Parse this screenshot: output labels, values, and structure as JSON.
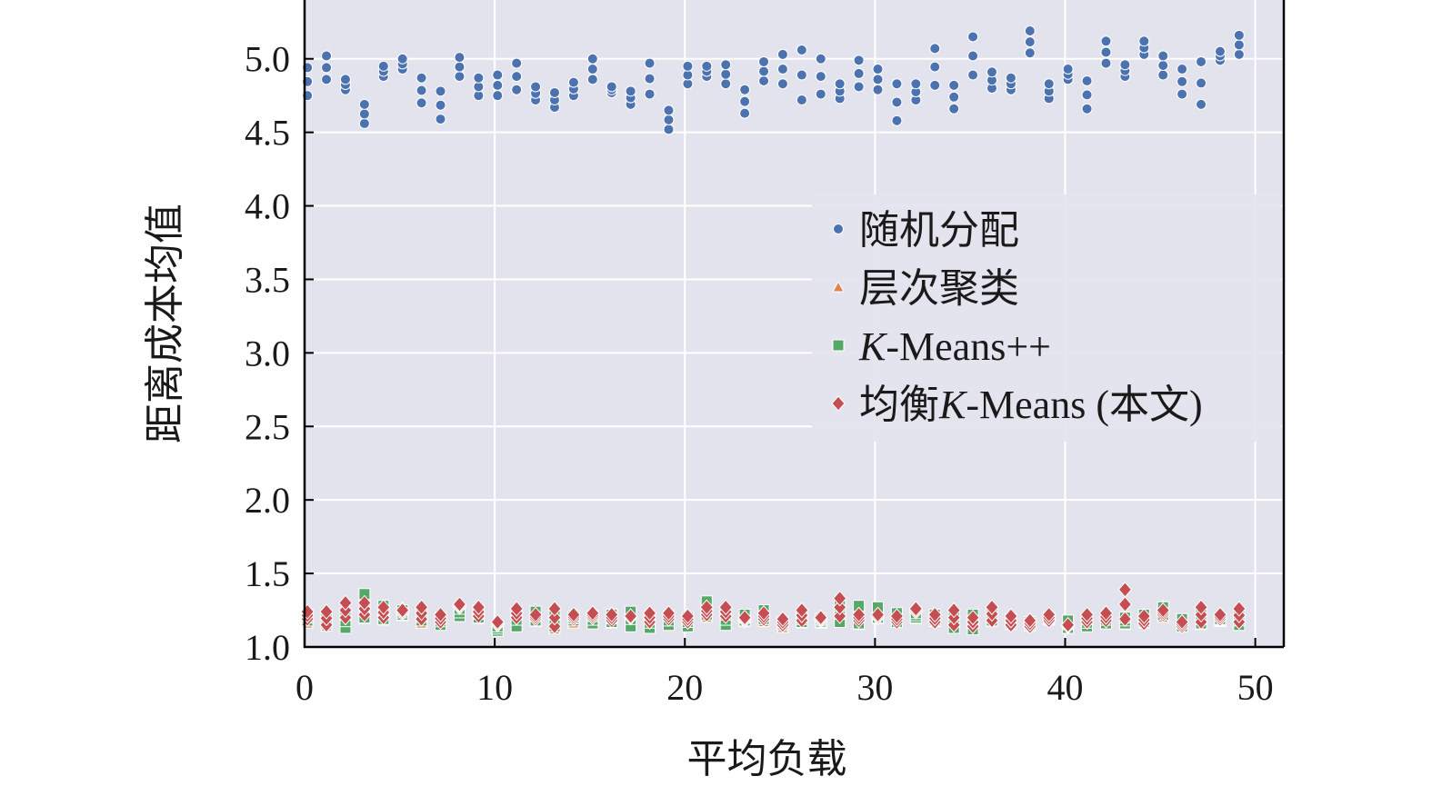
{
  "chart_data": {
    "type": "scatter",
    "title": "",
    "xlabel": "平均负载",
    "ylabel": "距离成本均值",
    "xlim": [
      0,
      51.5
    ],
    "ylim": [
      1.0,
      5.4
    ],
    "xticks": [
      0,
      10,
      20,
      30,
      40,
      50
    ],
    "xtick_labels": [
      "0",
      "10",
      "20",
      "30",
      "40",
      "50"
    ],
    "yticks": [
      1.0,
      1.5,
      2.0,
      2.5,
      3.0,
      3.5,
      4.0,
      4.5,
      5.0
    ],
    "ytick_labels": [
      "1.0",
      "1.5",
      "2.0",
      "2.5",
      "3.0",
      "3.5",
      "4.0",
      "4.5",
      "5.0"
    ],
    "grid": true,
    "legend_position": "center-right",
    "background": "#e3e3ee",
    "series": [
      {
        "name": "随机分配",
        "marker": "circle",
        "color": "#4c72b0",
        "x": [
          0,
          1,
          2,
          3,
          4,
          5,
          6,
          7,
          8,
          9,
          10,
          11,
          12,
          13,
          14,
          15,
          16,
          17,
          18,
          19,
          20,
          21,
          22,
          23,
          24,
          25,
          26,
          27,
          28,
          29,
          30,
          31,
          32,
          33,
          34,
          35,
          36,
          37,
          38,
          39,
          40,
          41,
          42,
          43,
          44,
          45,
          46,
          47,
          48,
          49
        ],
        "y_min": [
          4.75,
          4.86,
          4.79,
          4.56,
          4.88,
          4.93,
          4.7,
          4.59,
          4.88,
          4.75,
          4.75,
          4.79,
          4.72,
          4.67,
          4.75,
          4.86,
          4.77,
          4.69,
          4.76,
          4.52,
          4.83,
          4.88,
          4.83,
          4.63,
          4.85,
          4.83,
          4.72,
          4.76,
          4.73,
          4.81,
          4.79,
          4.58,
          4.72,
          4.82,
          4.66,
          4.89,
          4.8,
          4.79,
          5.04,
          4.73,
          4.86,
          4.66,
          4.97,
          4.88,
          5.03,
          4.89,
          4.76,
          4.69,
          4.99,
          5.03
        ],
        "y_max": [
          4.94,
          5.02,
          4.86,
          4.69,
          4.95,
          5.0,
          4.87,
          4.78,
          5.01,
          4.87,
          4.89,
          4.97,
          4.81,
          4.77,
          4.84,
          5.0,
          4.81,
          4.78,
          4.97,
          4.65,
          4.95,
          4.95,
          4.96,
          4.79,
          4.98,
          5.03,
          5.06,
          5.0,
          4.83,
          4.99,
          4.93,
          4.83,
          4.83,
          5.07,
          4.82,
          5.15,
          4.91,
          4.87,
          5.19,
          4.83,
          4.93,
          4.85,
          5.12,
          4.96,
          5.12,
          5.02,
          4.93,
          4.98,
          5.05,
          5.16
        ]
      },
      {
        "name": "层次聚类",
        "marker": "triangle",
        "color": "#dd8452",
        "x": [
          0,
          1,
          2,
          3,
          4,
          5,
          6,
          7,
          8,
          9,
          10,
          11,
          12,
          13,
          14,
          15,
          16,
          17,
          18,
          19,
          20,
          21,
          22,
          23,
          24,
          25,
          26,
          27,
          28,
          29,
          30,
          31,
          32,
          33,
          34,
          35,
          36,
          37,
          38,
          39,
          40,
          41,
          42,
          43,
          44,
          45,
          46,
          47,
          48,
          49
        ],
        "y_min": [
          1.16,
          1.14,
          1.14,
          1.19,
          1.18,
          1.21,
          1.16,
          1.16,
          1.21,
          1.19,
          1.12,
          1.15,
          1.17,
          1.12,
          1.16,
          1.17,
          1.16,
          1.15,
          1.14,
          1.16,
          1.14,
          1.2,
          1.17,
          1.17,
          1.17,
          1.13,
          1.16,
          1.16,
          1.18,
          1.15,
          1.19,
          1.17,
          1.19,
          1.17,
          1.15,
          1.13,
          1.17,
          1.15,
          1.14,
          1.18,
          1.14,
          1.15,
          1.16,
          1.15,
          1.16,
          1.2,
          1.14,
          1.15,
          1.17,
          1.16
        ],
        "y_max": [
          1.25,
          1.21,
          1.28,
          1.31,
          1.27,
          1.27,
          1.26,
          1.22,
          1.28,
          1.27,
          1.15,
          1.26,
          1.26,
          1.24,
          1.22,
          1.22,
          1.23,
          1.23,
          1.22,
          1.22,
          1.21,
          1.29,
          1.26,
          1.21,
          1.23,
          1.18,
          1.24,
          1.2,
          1.3,
          1.24,
          1.25,
          1.21,
          1.25,
          1.22,
          1.23,
          1.21,
          1.25,
          1.19,
          1.18,
          1.21,
          1.18,
          1.21,
          1.21,
          1.2,
          1.21,
          1.28,
          1.18,
          1.25,
          1.2,
          1.24
        ]
      },
      {
        "name": "K-Means++",
        "marker": "square",
        "color": "#55a868",
        "x": [
          0,
          1,
          2,
          3,
          4,
          5,
          6,
          7,
          8,
          9,
          10,
          11,
          12,
          13,
          14,
          15,
          16,
          17,
          18,
          19,
          20,
          21,
          22,
          23,
          24,
          25,
          26,
          27,
          28,
          29,
          30,
          31,
          32,
          33,
          34,
          35,
          36,
          37,
          38,
          39,
          40,
          41,
          42,
          43,
          44,
          45,
          46,
          47,
          48,
          49
        ],
        "y_min": [
          1.18,
          1.16,
          1.13,
          1.2,
          1.19,
          1.22,
          1.18,
          1.15,
          1.21,
          1.2,
          1.11,
          1.14,
          1.18,
          1.14,
          1.18,
          1.16,
          1.17,
          1.14,
          1.13,
          1.15,
          1.14,
          1.22,
          1.15,
          1.18,
          1.19,
          1.15,
          1.17,
          1.17,
          1.17,
          1.16,
          1.2,
          1.17,
          1.2,
          1.18,
          1.13,
          1.12,
          1.18,
          1.16,
          1.15,
          1.19,
          1.13,
          1.14,
          1.16,
          1.16,
          1.17,
          1.22,
          1.14,
          1.16,
          1.18,
          1.15
        ],
        "y_max": [
          1.22,
          1.2,
          1.22,
          1.36,
          1.28,
          1.25,
          1.23,
          1.2,
          1.26,
          1.25,
          1.14,
          1.23,
          1.24,
          1.22,
          1.21,
          1.21,
          1.22,
          1.24,
          1.2,
          1.21,
          1.2,
          1.31,
          1.22,
          1.22,
          1.25,
          1.17,
          1.21,
          1.19,
          1.28,
          1.28,
          1.27,
          1.23,
          1.23,
          1.22,
          1.22,
          1.22,
          1.23,
          1.19,
          1.17,
          1.2,
          1.18,
          1.19,
          1.21,
          1.2,
          1.22,
          1.27,
          1.19,
          1.22,
          1.19,
          1.21
        ]
      },
      {
        "name": "均衡K-Means (本文)",
        "marker": "diamond",
        "color": "#c44e52",
        "x": [
          0,
          1,
          2,
          3,
          4,
          5,
          6,
          7,
          8,
          9,
          10,
          11,
          12,
          13,
          14,
          15,
          16,
          17,
          18,
          19,
          20,
          21,
          22,
          23,
          24,
          25,
          26,
          27,
          28,
          29,
          30,
          31,
          32,
          33,
          34,
          35,
          36,
          37,
          38,
          39,
          40,
          41,
          42,
          43,
          44,
          45,
          46,
          47,
          48,
          49
        ],
        "y_min": [
          1.19,
          1.15,
          1.2,
          1.22,
          1.2,
          1.23,
          1.19,
          1.17,
          1.27,
          1.21,
          1.15,
          1.2,
          1.19,
          1.14,
          1.19,
          1.2,
          1.18,
          1.2,
          1.17,
          1.19,
          1.17,
          1.22,
          1.21,
          1.18,
          1.19,
          1.15,
          1.18,
          1.18,
          1.21,
          1.18,
          1.2,
          1.17,
          1.24,
          1.17,
          1.15,
          1.14,
          1.18,
          1.15,
          1.14,
          1.18,
          1.14,
          1.17,
          1.18,
          1.19,
          1.16,
          1.22,
          1.14,
          1.17,
          1.19,
          1.17
        ],
        "y_max": [
          1.24,
          1.24,
          1.3,
          1.3,
          1.27,
          1.25,
          1.27,
          1.22,
          1.29,
          1.27,
          1.17,
          1.26,
          1.22,
          1.26,
          1.22,
          1.23,
          1.22,
          1.21,
          1.23,
          1.23,
          1.21,
          1.27,
          1.27,
          1.2,
          1.23,
          1.19,
          1.25,
          1.2,
          1.33,
          1.22,
          1.22,
          1.21,
          1.26,
          1.22,
          1.25,
          1.2,
          1.27,
          1.21,
          1.18,
          1.22,
          1.15,
          1.22,
          1.23,
          1.39,
          1.21,
          1.25,
          1.17,
          1.27,
          1.22,
          1.26
        ]
      }
    ]
  }
}
